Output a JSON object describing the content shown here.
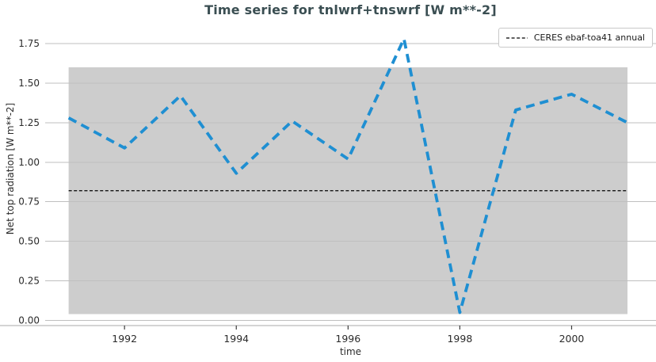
{
  "chart_data": {
    "type": "line",
    "title": "Time series for tnlwrf+tnswrf [W m**-2]",
    "xlabel": "time",
    "ylabel": "Net top radiation [W m**-2]",
    "x": [
      1991,
      1992,
      1993,
      1994,
      1995,
      1996,
      1997,
      1998,
      1999,
      2000,
      2001
    ],
    "series": [
      {
        "name": "tnlwrf+tnswrf",
        "values": [
          1.28,
          1.09,
          1.42,
          0.93,
          1.26,
          1.02,
          1.78,
          0.05,
          1.33,
          1.43,
          1.25
        ],
        "style": "dashed"
      }
    ],
    "reference_line": {
      "label": "CERES ebaf-toa41 annual",
      "value": 0.82,
      "style": "dashed"
    },
    "band": {
      "xmin": 1991,
      "xmax": 2001,
      "ymin": 0.04,
      "ymax": 1.6
    },
    "xticks": [
      1992,
      1994,
      1996,
      1998,
      2000
    ],
    "yticks": [
      "0.00",
      "0.25",
      "0.50",
      "0.75",
      "1.00",
      "1.25",
      "1.50",
      "1.75"
    ],
    "xlim": [
      1990.58,
      2001.51
    ],
    "ylim": [
      -0.0325,
      1.83
    ],
    "grid": "horizontal",
    "legend_position": "upper right",
    "colors": {
      "line": "#1f8fd2",
      "band": "#cdcdcd",
      "reference": "#000000",
      "grid": "#bfbfbf",
      "spine": "#a8a8a8",
      "title": "#3a4e52",
      "text": "#2b2b2b"
    }
  }
}
